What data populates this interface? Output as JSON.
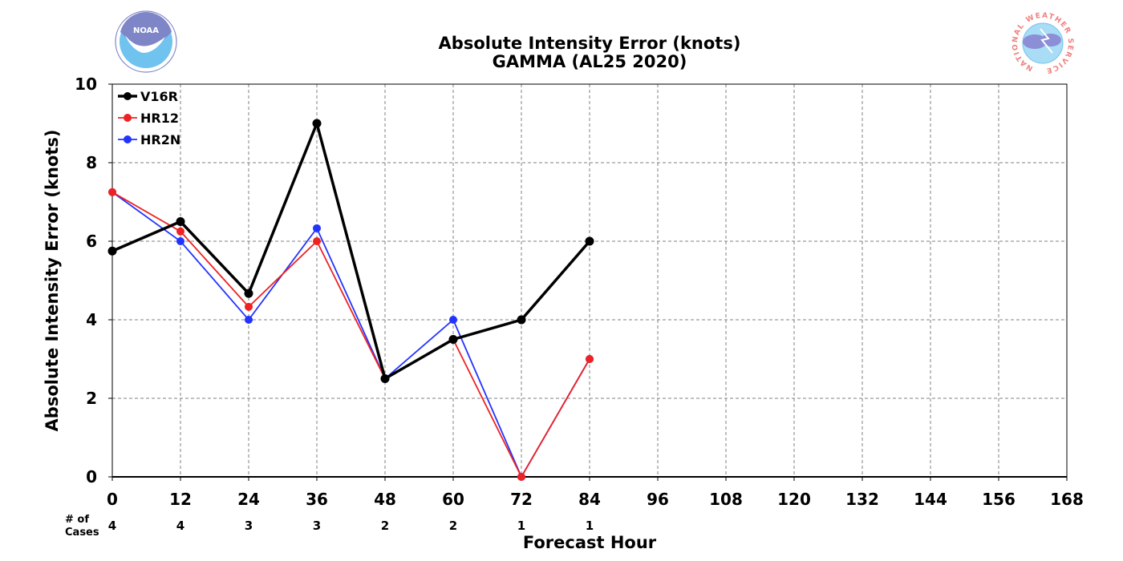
{
  "logos": {
    "left_text": "NOAA",
    "right_ring_text": "NATIONAL WEATHER SERVICE"
  },
  "colors": {
    "V16R": "#000000",
    "HR12": "#ee2222",
    "HR2N": "#2233ff",
    "grid": "#808080",
    "noaa_blue": "#6fc3ee",
    "noaa_purple": "#7f86c8",
    "nws_ring": "#f08080"
  },
  "cases_header": [
    "# of",
    "Cases"
  ],
  "chart_data": {
    "type": "line",
    "title": "Absolute Intensity Error (knots)",
    "subtitle": "GAMMA (AL25 2020)",
    "xlabel": "Forecast Hour",
    "ylabel": "Absolute Intensity Error (knots)",
    "xlim": [
      0,
      168
    ],
    "ylim": [
      0,
      10
    ],
    "xticks": [
      0,
      12,
      24,
      36,
      48,
      60,
      72,
      84,
      96,
      108,
      120,
      132,
      144,
      156,
      168
    ],
    "yticks": [
      0,
      2,
      4,
      6,
      8,
      10
    ],
    "grid": true,
    "legend_position": "top-left",
    "series": [
      {
        "name": "V16R",
        "x": [
          0,
          12,
          24,
          36,
          48,
          60,
          72,
          84
        ],
        "values": [
          5.75,
          6.5,
          4.67,
          9.0,
          2.5,
          3.5,
          4.0,
          6.0
        ]
      },
      {
        "name": "HR12",
        "x": [
          0,
          12,
          24,
          36,
          48,
          60,
          72,
          84
        ],
        "values": [
          7.25,
          6.25,
          4.33,
          6.0,
          2.5,
          3.5,
          0.0,
          3.0
        ]
      },
      {
        "name": "HR2N",
        "x": [
          0,
          12,
          24,
          36,
          48,
          60,
          72,
          84
        ],
        "values": [
          7.25,
          6.0,
          4.0,
          6.33,
          2.5,
          4.0,
          0.0,
          3.0
        ]
      }
    ],
    "cases": {
      "x": [
        0,
        12,
        24,
        36,
        48,
        60,
        72,
        84
      ],
      "values": [
        "4",
        "4",
        "3",
        "3",
        "2",
        "2",
        "1",
        "1"
      ]
    }
  }
}
